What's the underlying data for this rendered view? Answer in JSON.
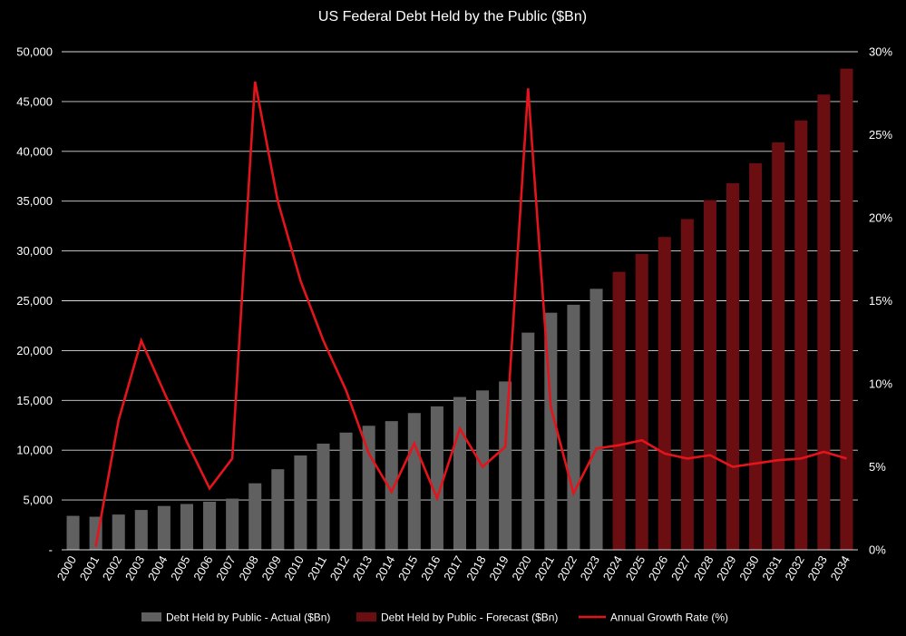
{
  "chart_data": {
    "type": "bar",
    "title": "US Federal Debt Held by the Public ($Bn)",
    "categories": [
      "2000",
      "2001",
      "2002",
      "2003",
      "2004",
      "2005",
      "2006",
      "2007",
      "2008",
      "2009",
      "2010",
      "2011",
      "2012",
      "2013",
      "2014",
      "2015",
      "2016",
      "2017",
      "2018",
      "2019",
      "2020",
      "2021",
      "2022",
      "2023",
      "2024",
      "2025",
      "2026",
      "2027",
      "2028",
      "2029",
      "2030",
      "2031",
      "2032",
      "2033",
      "2034"
    ],
    "series": [
      {
        "name": "Debt Held by Public - Actual ($Bn)",
        "kind": "bar",
        "axis": "left",
        "color": "#606060",
        "values": [
          3410,
          3320,
          3540,
          4000,
          4400,
          4600,
          4830,
          5140,
          6680,
          8090,
          9470,
          10660,
          11770,
          12450,
          12920,
          13730,
          14400,
          15340,
          16000,
          16900,
          21800,
          23800,
          24600,
          26200,
          null,
          null,
          null,
          null,
          null,
          null,
          null,
          null,
          null,
          null,
          null
        ]
      },
      {
        "name": "Debt Held by Public - Forecast ($Bn)",
        "kind": "bar",
        "axis": "left",
        "color": "#6b0e12",
        "values": [
          null,
          null,
          null,
          null,
          null,
          null,
          null,
          null,
          null,
          null,
          null,
          null,
          null,
          null,
          null,
          null,
          null,
          null,
          null,
          null,
          null,
          null,
          null,
          null,
          27900,
          29700,
          31400,
          33200,
          35100,
          36800,
          38800,
          40900,
          43100,
          45700,
          48300
        ]
      },
      {
        "name": "Annual Growth Rate (%)",
        "kind": "line",
        "axis": "right",
        "color": "#e3141c",
        "values": [
          null,
          0.2,
          7.8,
          12.6,
          9.5,
          6.5,
          3.7,
          5.5,
          28.2,
          21.0,
          16.2,
          12.6,
          9.6,
          5.8,
          3.5,
          6.4,
          3.1,
          7.3,
          5.0,
          6.2,
          27.8,
          8.6,
          3.4,
          6.1,
          6.3,
          6.6,
          5.8,
          5.5,
          5.7,
          5.0,
          5.2,
          5.4,
          5.5,
          5.9,
          5.5
        ]
      }
    ],
    "y_left": {
      "ylim": [
        0,
        50000
      ],
      "ticks": [
        "-",
        "5,000",
        "10,000",
        "15,000",
        "20,000",
        "25,000",
        "30,000",
        "35,000",
        "40,000",
        "45,000",
        "50,000"
      ]
    },
    "y_right": {
      "ylim": [
        0,
        30
      ],
      "ticks": [
        "0%",
        "5%",
        "10%",
        "15%",
        "20%",
        "25%",
        "30%"
      ]
    },
    "grid": true,
    "legend_position": "bottom",
    "colors": {
      "background": "#000000",
      "grid": "#d9d9d9",
      "text": "#ffffff"
    }
  }
}
